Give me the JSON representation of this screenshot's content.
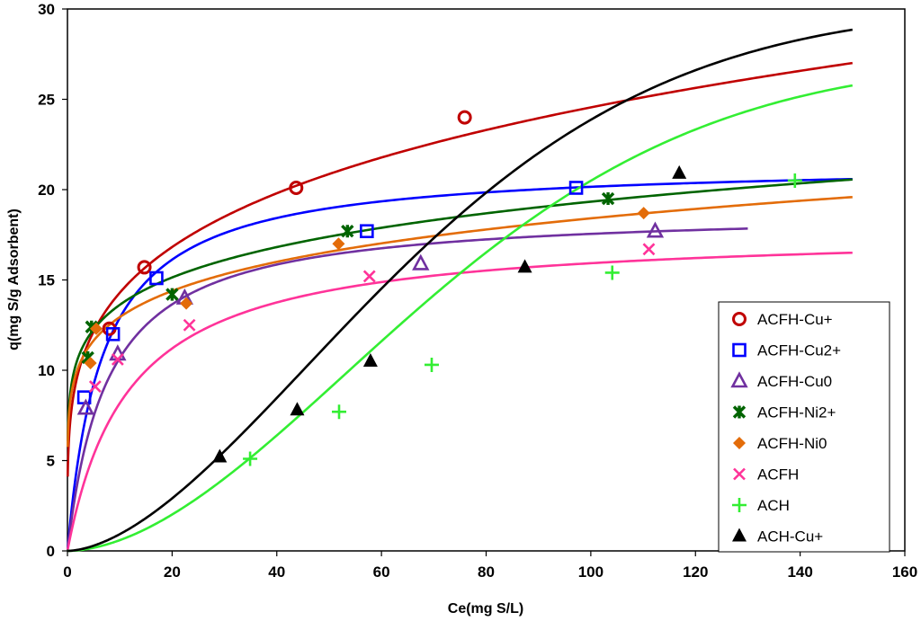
{
  "chart_data": {
    "type": "scatter",
    "title": "",
    "xlabel": "Ce(mg S/L)",
    "ylabel": "q(mg  S/g Adsorbent)",
    "xlim": [
      0,
      160
    ],
    "ylim": [
      0,
      30
    ],
    "xticks": [
      "0",
      "20",
      "40",
      "60",
      "80",
      "100",
      "120",
      "140",
      "160"
    ],
    "yticks": [
      "0",
      "5",
      "10",
      "15",
      "20",
      "25",
      "30"
    ],
    "grid": false,
    "legend_position": "bottom-right",
    "series": [
      {
        "name": "ACFH-Cu+",
        "color": "#C00000",
        "marker": "circle-open",
        "points": [
          [
            8,
            12.3
          ],
          [
            14.7,
            15.7
          ],
          [
            43.7,
            20.1
          ],
          [
            75.9,
            24.0
          ]
        ],
        "fit": {
          "model": "freundlich",
          "k": 8.32,
          "n": 0.235,
          "xmax": 150
        }
      },
      {
        "name": "ACFH-Cu2+",
        "color": "#0000FF",
        "marker": "square-open",
        "points": [
          [
            3.2,
            8.5
          ],
          [
            8.7,
            12.0
          ],
          [
            17.0,
            15.1
          ],
          [
            57.2,
            17.7
          ],
          [
            97.2,
            20.1
          ]
        ],
        "fit": {
          "model": "langmuir",
          "qm": 21.5,
          "b": 0.15,
          "xmax": 150
        }
      },
      {
        "name": "ACFH-Cu0",
        "color": "#7030A0",
        "marker": "triangle-open",
        "points": [
          [
            3.5,
            7.9
          ],
          [
            9.6,
            10.9
          ],
          [
            22.4,
            14.0
          ],
          [
            67.5,
            15.9
          ],
          [
            112.3,
            17.7
          ]
        ],
        "fit": {
          "model": "langmuir",
          "qm": 18.9,
          "b": 0.13,
          "xmax": 130
        }
      },
      {
        "name": "ACFH-Ni2+",
        "color": "#006400",
        "marker": "star",
        "points": [
          [
            3.9,
            10.7
          ],
          [
            4.6,
            12.4
          ],
          [
            20.0,
            14.2
          ],
          [
            53.5,
            17.7
          ],
          [
            103.3,
            19.5
          ]
        ],
        "fit": {
          "model": "freundlich",
          "k": 9.6,
          "n": 0.152,
          "xmax": 150
        }
      },
      {
        "name": "ACFH-Ni0",
        "color": "#E36C09",
        "marker": "diamond",
        "points": [
          [
            4.4,
            10.4
          ],
          [
            5.5,
            12.3
          ],
          [
            22.7,
            13.7
          ],
          [
            51.8,
            17.0
          ],
          [
            110.1,
            18.7
          ]
        ],
        "fit": {
          "model": "freundlich",
          "k": 9.1,
          "n": 0.153,
          "xmax": 150
        }
      },
      {
        "name": "ACFH",
        "color": "#FF3399",
        "marker": "x",
        "points": [
          [
            5.3,
            9.1
          ],
          [
            9.6,
            10.6
          ],
          [
            23.3,
            12.5
          ],
          [
            57.7,
            15.2
          ],
          [
            111.1,
            16.7
          ]
        ],
        "fit": {
          "model": "langmuir",
          "qm": 17.8,
          "b": 0.085,
          "xmax": 150
        }
      },
      {
        "name": "ACH",
        "color": "#33EE33",
        "marker": "plus",
        "points": [
          [
            34.9,
            5.1
          ],
          [
            51.9,
            7.7
          ],
          [
            69.6,
            10.3
          ],
          [
            104.1,
            15.4
          ],
          [
            139.0,
            20.5
          ]
        ],
        "fit": {
          "model": "sigmoid",
          "a": 27.3,
          "k": 0.012,
          "p": 1.8,
          "xmax": 150
        }
      },
      {
        "name": "ACH-Cu+",
        "color": "#000000",
        "marker": "triangle-filled",
        "points": [
          [
            29.1,
            5.2
          ],
          [
            43.9,
            7.8
          ],
          [
            57.9,
            10.5
          ],
          [
            87.4,
            15.7
          ],
          [
            116.9,
            20.9
          ]
        ],
        "fit": {
          "model": "sigmoid",
          "a": 30.2,
          "k": 0.013,
          "p": 1.7,
          "xmax": 150
        }
      }
    ]
  }
}
